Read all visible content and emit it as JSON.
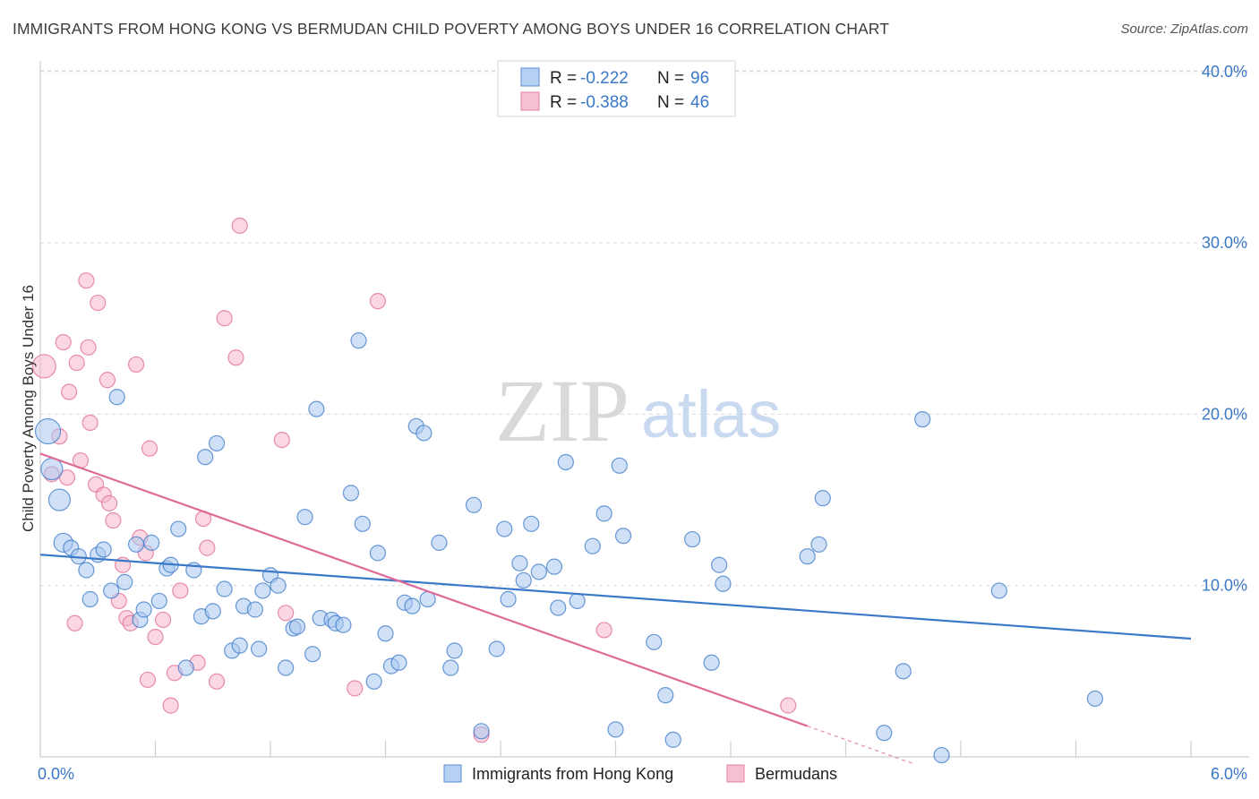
{
  "title": "IMMIGRANTS FROM HONG KONG VS BERMUDAN CHILD POVERTY AMONG BOYS UNDER 16 CORRELATION CHART",
  "source": "Source: ZipAtlas.com",
  "watermark": {
    "zip": "ZIP",
    "atlas": "atlas"
  },
  "legend_top": [
    {
      "r_label": "R =",
      "r_value": "-0.222",
      "n_label": "N =",
      "n_value": "96"
    },
    {
      "r_label": "R =",
      "r_value": "-0.388",
      "n_label": "N =",
      "n_value": "46"
    }
  ],
  "colors": {
    "blue": "#3a78c8",
    "blue_fill": "#a9c8f0",
    "pink": "#e06a96",
    "pink_fill": "#f5b6cc",
    "grid": "#d8d8d8"
  },
  "chart_data": {
    "type": "scatter",
    "title": "IMMIGRANTS FROM HONG KONG VS BERMUDAN CHILD POVERTY AMONG BOYS UNDER 16 CORRELATION CHART",
    "xlabel": "",
    "ylabel": "Child Poverty Among Boys Under 16",
    "xlim": [
      0,
      6
    ],
    "ylim": [
      0,
      42
    ],
    "x_tick_labels": [
      "0.0%",
      "6.0%"
    ],
    "y_ticks": [
      10,
      20,
      30,
      40
    ],
    "y_tick_labels": [
      "10.0%",
      "20.0%",
      "30.0%",
      "40.0%"
    ],
    "grid": true,
    "legend_position": "top-center",
    "series": [
      {
        "name": "Immigrants from Hong Kong",
        "color": "#3a78c8",
        "trend": {
          "x": [
            0.0,
            6.0
          ],
          "y": [
            11.8,
            6.9
          ]
        },
        "points": [
          [
            0.04,
            19.0
          ],
          [
            0.1,
            15.0
          ],
          [
            0.12,
            12.5
          ],
          [
            0.16,
            12.2
          ],
          [
            0.2,
            11.7
          ],
          [
            0.24,
            10.9
          ],
          [
            0.26,
            9.2
          ],
          [
            0.3,
            11.8
          ],
          [
            0.33,
            12.1
          ],
          [
            0.37,
            9.7
          ],
          [
            0.4,
            21.0
          ],
          [
            0.44,
            10.2
          ],
          [
            0.5,
            12.4
          ],
          [
            0.52,
            8.0
          ],
          [
            0.54,
            8.6
          ],
          [
            0.58,
            12.5
          ],
          [
            0.62,
            9.1
          ],
          [
            0.66,
            11.0
          ],
          [
            0.68,
            11.2
          ],
          [
            0.72,
            13.3
          ],
          [
            0.76,
            5.2
          ],
          [
            0.8,
            10.9
          ],
          [
            0.84,
            8.2
          ],
          [
            0.86,
            17.5
          ],
          [
            0.9,
            8.5
          ],
          [
            0.92,
            18.3
          ],
          [
            0.96,
            9.8
          ],
          [
            1.0,
            6.2
          ],
          [
            1.04,
            6.5
          ],
          [
            1.06,
            8.8
          ],
          [
            1.12,
            8.6
          ],
          [
            1.14,
            6.3
          ],
          [
            1.16,
            9.7
          ],
          [
            1.2,
            10.6
          ],
          [
            1.24,
            10.0
          ],
          [
            1.28,
            5.2
          ],
          [
            1.32,
            7.5
          ],
          [
            1.34,
            7.6
          ],
          [
            1.38,
            14.0
          ],
          [
            1.42,
            6.0
          ],
          [
            1.44,
            20.3
          ],
          [
            1.46,
            8.1
          ],
          [
            1.52,
            8.0
          ],
          [
            1.54,
            7.8
          ],
          [
            1.58,
            7.7
          ],
          [
            1.62,
            15.4
          ],
          [
            1.66,
            24.3
          ],
          [
            1.68,
            13.6
          ],
          [
            1.74,
            4.4
          ],
          [
            1.76,
            11.9
          ],
          [
            1.8,
            7.2
          ],
          [
            1.83,
            5.3
          ],
          [
            1.87,
            5.5
          ],
          [
            1.9,
            9.0
          ],
          [
            1.94,
            8.8
          ],
          [
            1.96,
            19.3
          ],
          [
            2.0,
            18.9
          ],
          [
            2.02,
            9.2
          ],
          [
            2.08,
            12.5
          ],
          [
            2.14,
            5.2
          ],
          [
            2.16,
            6.2
          ],
          [
            2.26,
            14.7
          ],
          [
            2.3,
            1.5
          ],
          [
            2.38,
            6.3
          ],
          [
            2.42,
            13.3
          ],
          [
            2.44,
            9.2
          ],
          [
            2.5,
            11.3
          ],
          [
            2.52,
            10.3
          ],
          [
            2.56,
            13.6
          ],
          [
            2.6,
            10.8
          ],
          [
            2.68,
            11.1
          ],
          [
            2.7,
            8.7
          ],
          [
            2.74,
            17.2
          ],
          [
            2.8,
            9.1
          ],
          [
            2.88,
            12.3
          ],
          [
            2.94,
            14.2
          ],
          [
            3.0,
            1.6
          ],
          [
            3.02,
            17.0
          ],
          [
            3.04,
            12.9
          ],
          [
            3.2,
            6.7
          ],
          [
            3.26,
            3.6
          ],
          [
            3.3,
            1.0
          ],
          [
            3.4,
            12.7
          ],
          [
            3.5,
            5.5
          ],
          [
            3.54,
            11.2
          ],
          [
            3.56,
            10.1
          ],
          [
            4.0,
            11.7
          ],
          [
            4.06,
            12.4
          ],
          [
            4.08,
            15.1
          ],
          [
            4.4,
            1.4
          ],
          [
            4.5,
            5.0
          ],
          [
            4.6,
            19.7
          ],
          [
            4.7,
            0.1
          ],
          [
            5.0,
            9.7
          ],
          [
            5.5,
            3.4
          ],
          [
            0.06,
            16.8
          ]
        ]
      },
      {
        "name": "Bermudans",
        "color": "#e06a96",
        "trend": {
          "x": [
            0.0,
            4.0
          ],
          "y": [
            17.7,
            1.8
          ]
        },
        "points": [
          [
            0.02,
            22.8
          ],
          [
            0.06,
            16.5
          ],
          [
            0.1,
            18.7
          ],
          [
            0.12,
            24.2
          ],
          [
            0.14,
            16.3
          ],
          [
            0.15,
            21.3
          ],
          [
            0.18,
            7.8
          ],
          [
            0.19,
            23.0
          ],
          [
            0.21,
            17.3
          ],
          [
            0.24,
            27.8
          ],
          [
            0.25,
            23.9
          ],
          [
            0.26,
            19.5
          ],
          [
            0.29,
            15.9
          ],
          [
            0.3,
            26.5
          ],
          [
            0.33,
            15.3
          ],
          [
            0.35,
            22.0
          ],
          [
            0.36,
            14.8
          ],
          [
            0.38,
            13.8
          ],
          [
            0.41,
            9.1
          ],
          [
            0.43,
            11.2
          ],
          [
            0.45,
            8.1
          ],
          [
            0.47,
            7.8
          ],
          [
            0.5,
            22.9
          ],
          [
            0.52,
            12.8
          ],
          [
            0.55,
            11.9
          ],
          [
            0.57,
            18.0
          ],
          [
            0.56,
            4.5
          ],
          [
            0.6,
            7.0
          ],
          [
            0.64,
            8.0
          ],
          [
            0.68,
            3.0
          ],
          [
            0.7,
            4.9
          ],
          [
            0.73,
            9.7
          ],
          [
            0.82,
            5.5
          ],
          [
            0.85,
            13.9
          ],
          [
            0.87,
            12.2
          ],
          [
            0.92,
            4.4
          ],
          [
            0.96,
            25.6
          ],
          [
            1.02,
            23.3
          ],
          [
            1.04,
            31.0
          ],
          [
            1.26,
            18.5
          ],
          [
            1.28,
            8.4
          ],
          [
            1.64,
            4.0
          ],
          [
            1.76,
            26.6
          ],
          [
            2.3,
            1.3
          ],
          [
            2.94,
            7.4
          ],
          [
            3.9,
            3.0
          ]
        ]
      }
    ],
    "bottom_legend": [
      "Immigrants from Hong Kong",
      "Bermudans"
    ]
  }
}
